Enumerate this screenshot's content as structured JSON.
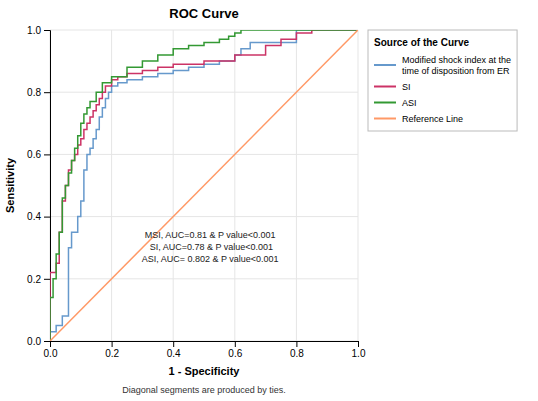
{
  "chart_data": {
    "type": "line",
    "title": "ROC Curve",
    "x_label": "1 - Specificity",
    "y_label": "Sensitivity",
    "footnote": "Diagonal segments are produced by ties.",
    "legend_title": "Source of the Curve",
    "legend": "right",
    "grid": true,
    "annotation": {
      "lines": [
        "MSI, AUC=0.81 & P value<0.001",
        " SI, AUC=0.78 & P value<0.001",
        "ASI, AUC= 0.802 & P value<0.001"
      ],
      "x": 0.52,
      "y": 0.3
    },
    "xlim": [
      0.0,
      1.0
    ],
    "ylim": [
      0.0,
      1.0
    ],
    "xticks": [
      {
        "value": 0,
        "label": "0.0"
      },
      0.2,
      0.4,
      0.6,
      0.8,
      {
        "value": 1,
        "label": "1.0"
      }
    ],
    "yticks": [
      {
        "value": 0,
        "label": "0.0"
      },
      0.2,
      0.4,
      0.6,
      0.8,
      {
        "value": 1,
        "label": "1.0"
      }
    ],
    "series": [
      {
        "name": "Modified shock index at the\ntime of disposition from ER",
        "color": "#6699CC",
        "x": [
          0.0,
          0.0,
          0.02,
          0.02,
          0.04,
          0.04,
          0.06,
          0.06,
          0.07,
          0.07,
          0.09,
          0.09,
          0.1,
          0.1,
          0.11,
          0.11,
          0.12,
          0.12,
          0.13,
          0.13,
          0.14,
          0.14,
          0.15,
          0.15,
          0.16,
          0.16,
          0.17,
          0.17,
          0.18,
          0.18,
          0.19,
          0.19,
          0.2,
          0.2,
          0.22,
          0.22,
          0.25,
          0.25,
          0.3,
          0.3,
          0.35,
          0.35,
          0.4,
          0.4,
          0.45,
          0.45,
          0.5,
          0.5,
          0.55,
          0.55,
          0.6,
          0.6,
          0.62,
          0.62,
          0.65,
          0.65,
          0.8,
          0.8,
          1.0
        ],
        "values": [
          0.0,
          0.03,
          0.03,
          0.05,
          0.05,
          0.08,
          0.08,
          0.3,
          0.3,
          0.35,
          0.35,
          0.4,
          0.4,
          0.45,
          0.45,
          0.55,
          0.55,
          0.6,
          0.6,
          0.62,
          0.62,
          0.65,
          0.65,
          0.68,
          0.68,
          0.72,
          0.72,
          0.75,
          0.75,
          0.78,
          0.78,
          0.8,
          0.8,
          0.82,
          0.82,
          0.83,
          0.83,
          0.84,
          0.84,
          0.85,
          0.85,
          0.86,
          0.86,
          0.87,
          0.87,
          0.88,
          0.88,
          0.89,
          0.89,
          0.9,
          0.9,
          0.92,
          0.92,
          0.94,
          0.94,
          0.96,
          0.96,
          1.0,
          1.0
        ]
      },
      {
        "name": "SI",
        "color": "#CC3366",
        "x": [
          0.0,
          0.0,
          0.02,
          0.02,
          0.03,
          0.03,
          0.04,
          0.04,
          0.05,
          0.05,
          0.06,
          0.06,
          0.07,
          0.07,
          0.08,
          0.08,
          0.09,
          0.09,
          0.1,
          0.1,
          0.11,
          0.11,
          0.12,
          0.12,
          0.13,
          0.13,
          0.14,
          0.14,
          0.15,
          0.15,
          0.16,
          0.16,
          0.17,
          0.17,
          0.18,
          0.18,
          0.2,
          0.2,
          0.22,
          0.22,
          0.25,
          0.25,
          0.3,
          0.3,
          0.35,
          0.35,
          0.4,
          0.4,
          0.5,
          0.5,
          0.6,
          0.6,
          0.7,
          0.7,
          0.75,
          0.75,
          0.8,
          0.8,
          0.85,
          0.85,
          1.0
        ],
        "values": [
          0.0,
          0.22,
          0.22,
          0.25,
          0.25,
          0.35,
          0.35,
          0.45,
          0.45,
          0.5,
          0.5,
          0.55,
          0.55,
          0.58,
          0.58,
          0.6,
          0.6,
          0.63,
          0.63,
          0.65,
          0.65,
          0.68,
          0.68,
          0.7,
          0.7,
          0.72,
          0.72,
          0.74,
          0.74,
          0.76,
          0.76,
          0.78,
          0.78,
          0.8,
          0.8,
          0.82,
          0.82,
          0.84,
          0.84,
          0.85,
          0.85,
          0.86,
          0.86,
          0.87,
          0.87,
          0.88,
          0.88,
          0.89,
          0.89,
          0.9,
          0.9,
          0.92,
          0.92,
          0.95,
          0.95,
          0.97,
          0.97,
          0.99,
          0.99,
          1.0,
          1.0
        ]
      },
      {
        "name": "ASI",
        "color": "#339933",
        "x": [
          0.0,
          0.0,
          0.01,
          0.01,
          0.02,
          0.02,
          0.03,
          0.03,
          0.04,
          0.04,
          0.05,
          0.05,
          0.06,
          0.06,
          0.07,
          0.07,
          0.08,
          0.08,
          0.09,
          0.09,
          0.1,
          0.1,
          0.11,
          0.11,
          0.12,
          0.12,
          0.13,
          0.13,
          0.15,
          0.15,
          0.17,
          0.17,
          0.2,
          0.2,
          0.25,
          0.25,
          0.3,
          0.3,
          0.35,
          0.35,
          0.4,
          0.4,
          0.45,
          0.45,
          0.5,
          0.5,
          0.55,
          0.55,
          0.58,
          0.58,
          0.6,
          0.6,
          0.62,
          0.62,
          0.65,
          0.65,
          1.0
        ],
        "values": [
          0.0,
          0.14,
          0.14,
          0.2,
          0.2,
          0.28,
          0.28,
          0.35,
          0.35,
          0.46,
          0.46,
          0.5,
          0.5,
          0.54,
          0.54,
          0.58,
          0.58,
          0.62,
          0.62,
          0.66,
          0.66,
          0.7,
          0.7,
          0.73,
          0.73,
          0.75,
          0.75,
          0.77,
          0.77,
          0.8,
          0.8,
          0.83,
          0.83,
          0.85,
          0.85,
          0.88,
          0.88,
          0.9,
          0.9,
          0.92,
          0.92,
          0.94,
          0.94,
          0.95,
          0.95,
          0.96,
          0.96,
          0.97,
          0.97,
          0.98,
          0.98,
          0.99,
          0.99,
          1.0,
          1.0,
          1.0,
          1.0
        ]
      },
      {
        "name": "Reference Line",
        "color": "#FF9966",
        "x": [
          0,
          1
        ],
        "values": [
          0,
          1
        ]
      }
    ]
  }
}
